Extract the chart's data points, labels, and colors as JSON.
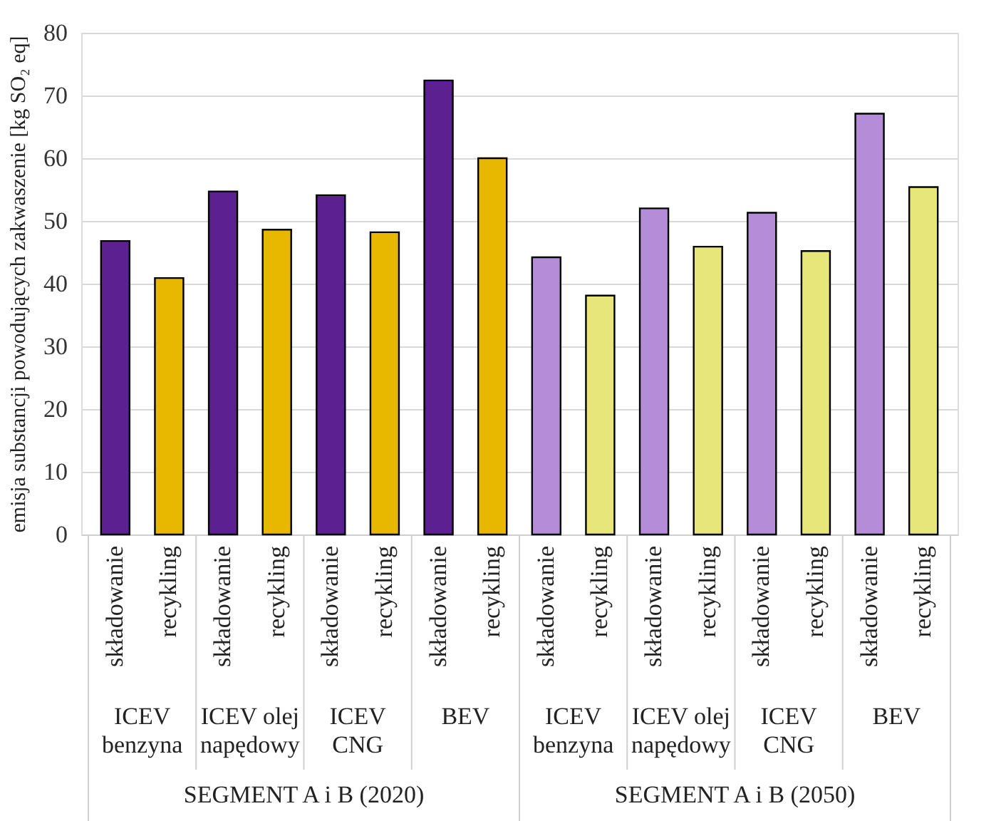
{
  "chart_data": {
    "type": "bar",
    "ylabel": "emisja substancji powodujących zakwaszenie [kg SO₂ eq]",
    "categories": [
      "składowanie",
      "recykling",
      "składowanie",
      "recykling",
      "składowanie",
      "recykling",
      "składowanie",
      "recykling",
      "składowanie",
      "recykling",
      "składowanie",
      "recykling",
      "składowanie",
      "recykling",
      "składowanie",
      "recykling"
    ],
    "values": [
      46.8,
      40.9,
      54.7,
      48.6,
      54.1,
      48.2,
      72.4,
      60.0,
      44.2,
      38.1,
      52.0,
      45.9,
      51.3,
      45.2,
      67.1,
      55.4
    ],
    "colors": [
      "#5c2090",
      "#e8b800",
      "#5c2090",
      "#e8b800",
      "#5c2090",
      "#e8b800",
      "#5c2090",
      "#e8b800",
      "#b48cd8",
      "#e6e67a",
      "#b48cd8",
      "#e6e67a",
      "#b48cd8",
      "#e6e67a",
      "#b48cd8",
      "#e6e67a"
    ],
    "annotations": [
      "ICEV benzyna",
      "ICEV olej napędowy",
      "ICEV CNG",
      "BEV",
      "ICEV benzyna",
      "ICEV olej napędowy",
      "ICEV CNG",
      "BEV",
      "SEGMENT A i B (2020)",
      "SEGMENT A i B (2050)"
    ],
    "ylim": [
      0,
      80
    ],
    "yticks": [
      0,
      10,
      20,
      30,
      40,
      50,
      60,
      70,
      80
    ],
    "grid": "y"
  }
}
